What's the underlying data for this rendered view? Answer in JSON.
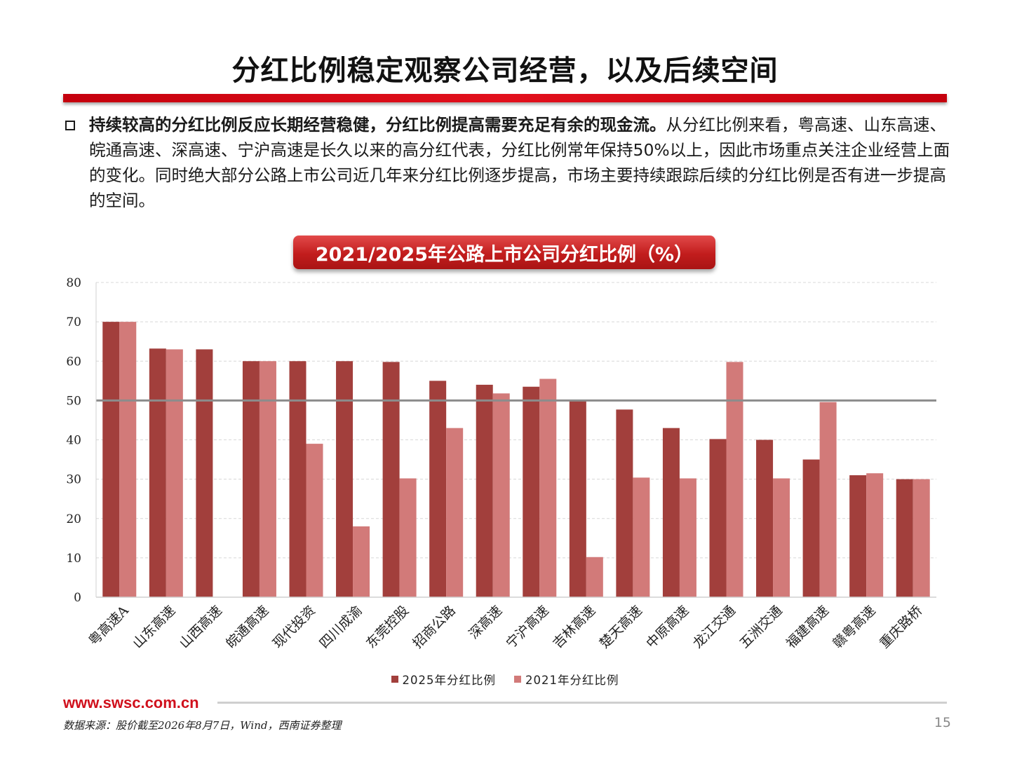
{
  "page": {
    "title": "分红比例稳定观察公司经营，以及后续空间",
    "bullet": {
      "lead": "持续较高的分红比例反应长期经营稳健，分红比例提高需要充足有余的现金流。",
      "text": "从分红比例来看，粤高速、山东高速、皖通高速、深高速、宁沪高速是长久以来的高分红代表，分红比例常年保持50%以上，因此市场重点关注企业经营上面的变化。同时绝大部分公路上市公司近几年来分红比例逐步提高，市场主要持续跟踪后续的分红比例是否有进一步提高的空间。"
    },
    "chart_title": "2021/2025年公路上市公司分红比例（%）",
    "footer": {
      "url": "www.swsc.com.cn",
      "source": "数据来源：股价截至2026年8月7日，Wind，西南证券整理",
      "page_number": "15"
    }
  },
  "chart_data": {
    "type": "bar",
    "categories": [
      "粤高速A",
      "山东高速",
      "山西高速",
      "皖通高速",
      "现代投资",
      "四川成渝",
      "东莞控股",
      "招商公路",
      "深高速",
      "宁沪高速",
      "吉林高速",
      "楚天高速",
      "中原高速",
      "龙江交通",
      "五洲交通",
      "福建高速",
      "赣粤高速",
      "重庆路桥"
    ],
    "series": [
      {
        "name": "2025年分红比例",
        "color": "#a23f3c",
        "values": [
          70,
          63.2,
          63,
          60,
          60,
          60,
          59.8,
          55,
          54,
          53.5,
          50,
          47.7,
          43,
          40.2,
          40,
          35,
          31,
          30
        ]
      },
      {
        "name": "2021年分红比例",
        "color": "#d27a79",
        "values": [
          70,
          63,
          null,
          60,
          39,
          18,
          30.2,
          43,
          51.8,
          55.5,
          10.2,
          30.4,
          30.2,
          59.8,
          30.2,
          49.6,
          31.5,
          30
        ]
      }
    ],
    "yticks": [
      "0",
      "10",
      "20",
      "30",
      "40",
      "50",
      "60",
      "70",
      "80"
    ],
    "ylim": [
      0,
      80
    ],
    "reference_line": 50,
    "grid": true,
    "legend_position": "bottom"
  }
}
